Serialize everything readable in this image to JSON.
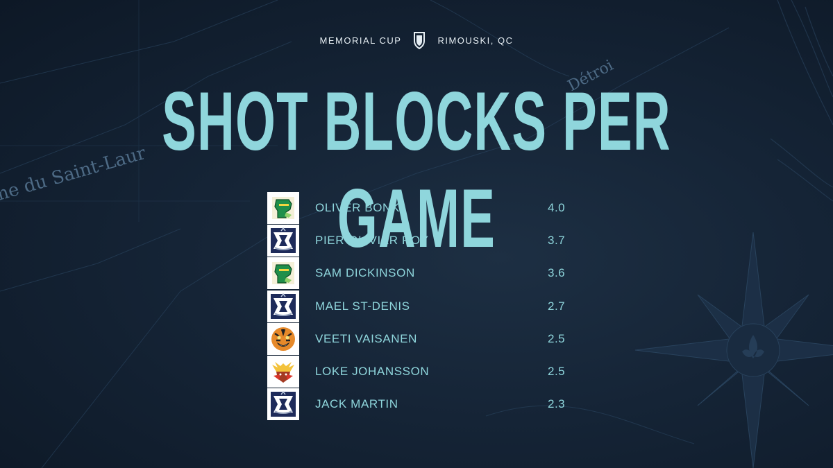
{
  "header": {
    "left_text": "MEMORIAL CUP",
    "right_text": "RIMOUSKI, QC",
    "divider_icon": "shield-crest-icon"
  },
  "title": "SHOT BLOCKS PER GAME",
  "background_map_labels": [
    "me du Saint-Laur",
    "Détroi"
  ],
  "colors": {
    "accent": "#8fd6dc",
    "background": "#0f1b2b",
    "header_text": "#e6eef3"
  },
  "players": [
    {
      "name": "OLIVER BONK",
      "value": "4.0",
      "team_logo": "knights-helmet-logo"
    },
    {
      "name": "PIER-OLIVIER ROY",
      "value": "3.7",
      "team_logo": "oceanic-logo"
    },
    {
      "name": "SAM DICKINSON",
      "value": "3.6",
      "team_logo": "knights-helmet-logo"
    },
    {
      "name": "MAEL ST-DENIS",
      "value": "2.7",
      "team_logo": "oceanic-logo"
    },
    {
      "name": "VEETI VAISANEN",
      "value": "2.5",
      "team_logo": "tiger-head-logo"
    },
    {
      "name": "LOKE JOHANSSON",
      "value": "2.5",
      "team_logo": "moose-head-logo"
    },
    {
      "name": "JACK MARTIN",
      "value": "2.3",
      "team_logo": "oceanic-logo"
    }
  ]
}
